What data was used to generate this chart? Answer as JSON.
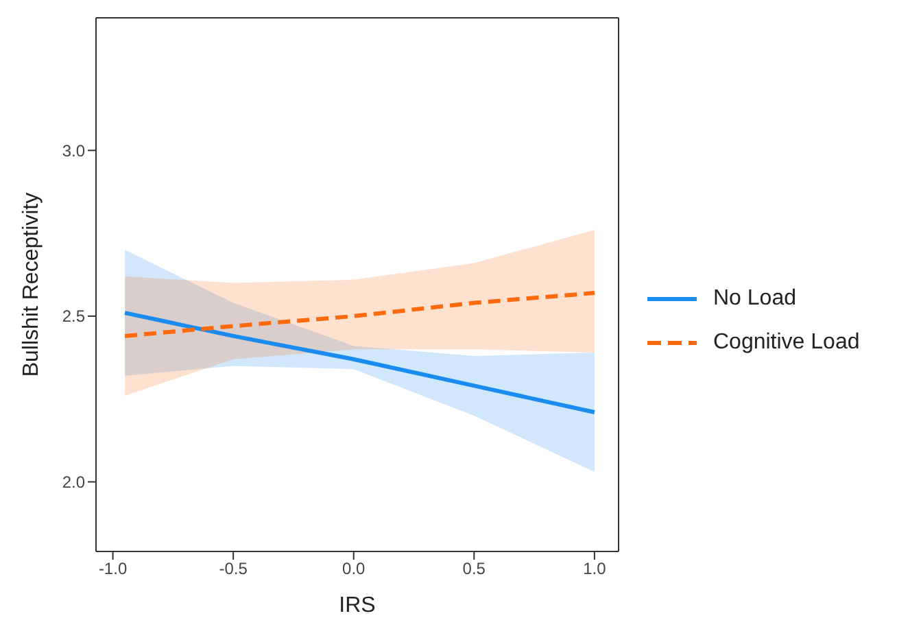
{
  "chart_data": {
    "type": "line",
    "xlabel": "IRS",
    "ylabel": "Bullshit Receptivity",
    "x": [
      -0.95,
      -0.5,
      0,
      0.5,
      1.0
    ],
    "xlim": [
      -1.07,
      1.1
    ],
    "xticks": [
      {
        "value": -1,
        "label": "-1.0"
      },
      -0.5,
      {
        "value": 0,
        "label": "0.0"
      },
      0.5,
      {
        "value": 1,
        "label": "1.0"
      }
    ],
    "ylim": [
      1.79,
      3.4
    ],
    "yticks": [
      {
        "value": 2,
        "label": "2.0"
      },
      2.5,
      {
        "value": 3,
        "label": "3.0"
      }
    ],
    "legend": "right",
    "marker": "none",
    "series": [
      {
        "name": "No Load",
        "color": "#1a8cef",
        "line_style": "solid",
        "values": [
          2.51,
          2.44,
          2.37,
          2.29,
          2.21
        ],
        "lower": [
          2.32,
          2.35,
          2.34,
          2.2,
          2.03
        ],
        "upper": [
          2.7,
          2.54,
          2.41,
          2.38,
          2.39
        ]
      },
      {
        "name": "Cognitive Load",
        "color": "#ff6a0d",
        "line_style": "dashed",
        "values": [
          2.44,
          2.47,
          2.5,
          2.54,
          2.57
        ],
        "lower": [
          2.26,
          2.37,
          2.4,
          2.4,
          2.39
        ],
        "upper": [
          2.62,
          2.6,
          2.61,
          2.66,
          2.76
        ]
      }
    ]
  }
}
